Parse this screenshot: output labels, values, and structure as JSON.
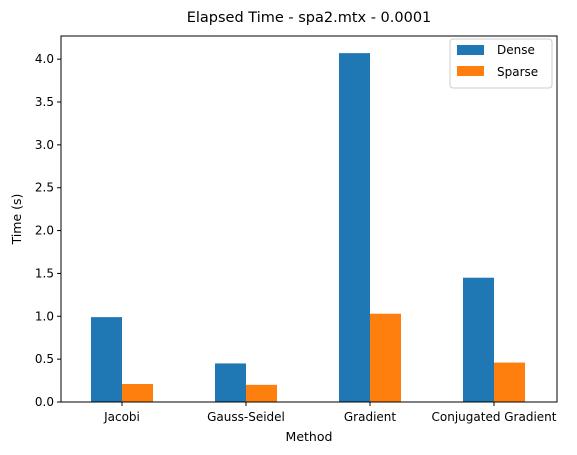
{
  "chart_data": {
    "type": "bar",
    "title": "Elapsed Time - spa2.mtx - 0.0001",
    "xlabel": "Method",
    "ylabel": "Time (s)",
    "categories": [
      "Jacobi",
      "Gauss-Seidel",
      "Gradient",
      "Conjugated Gradient"
    ],
    "series": [
      {
        "name": "Dense",
        "color": "#1f77b4",
        "values": [
          0.99,
          0.45,
          4.07,
          1.45
        ]
      },
      {
        "name": "Sparse",
        "color": "#ff7f0e",
        "values": [
          0.21,
          0.2,
          1.03,
          0.46
        ]
      }
    ],
    "ylim": [
      0,
      4.27
    ],
    "yticks": [
      "0.0",
      "0.5",
      "1.0",
      "1.5",
      "2.0",
      "2.5",
      "3.0",
      "3.5",
      "4.0"
    ],
    "legend": "top-right",
    "grid": false
  }
}
